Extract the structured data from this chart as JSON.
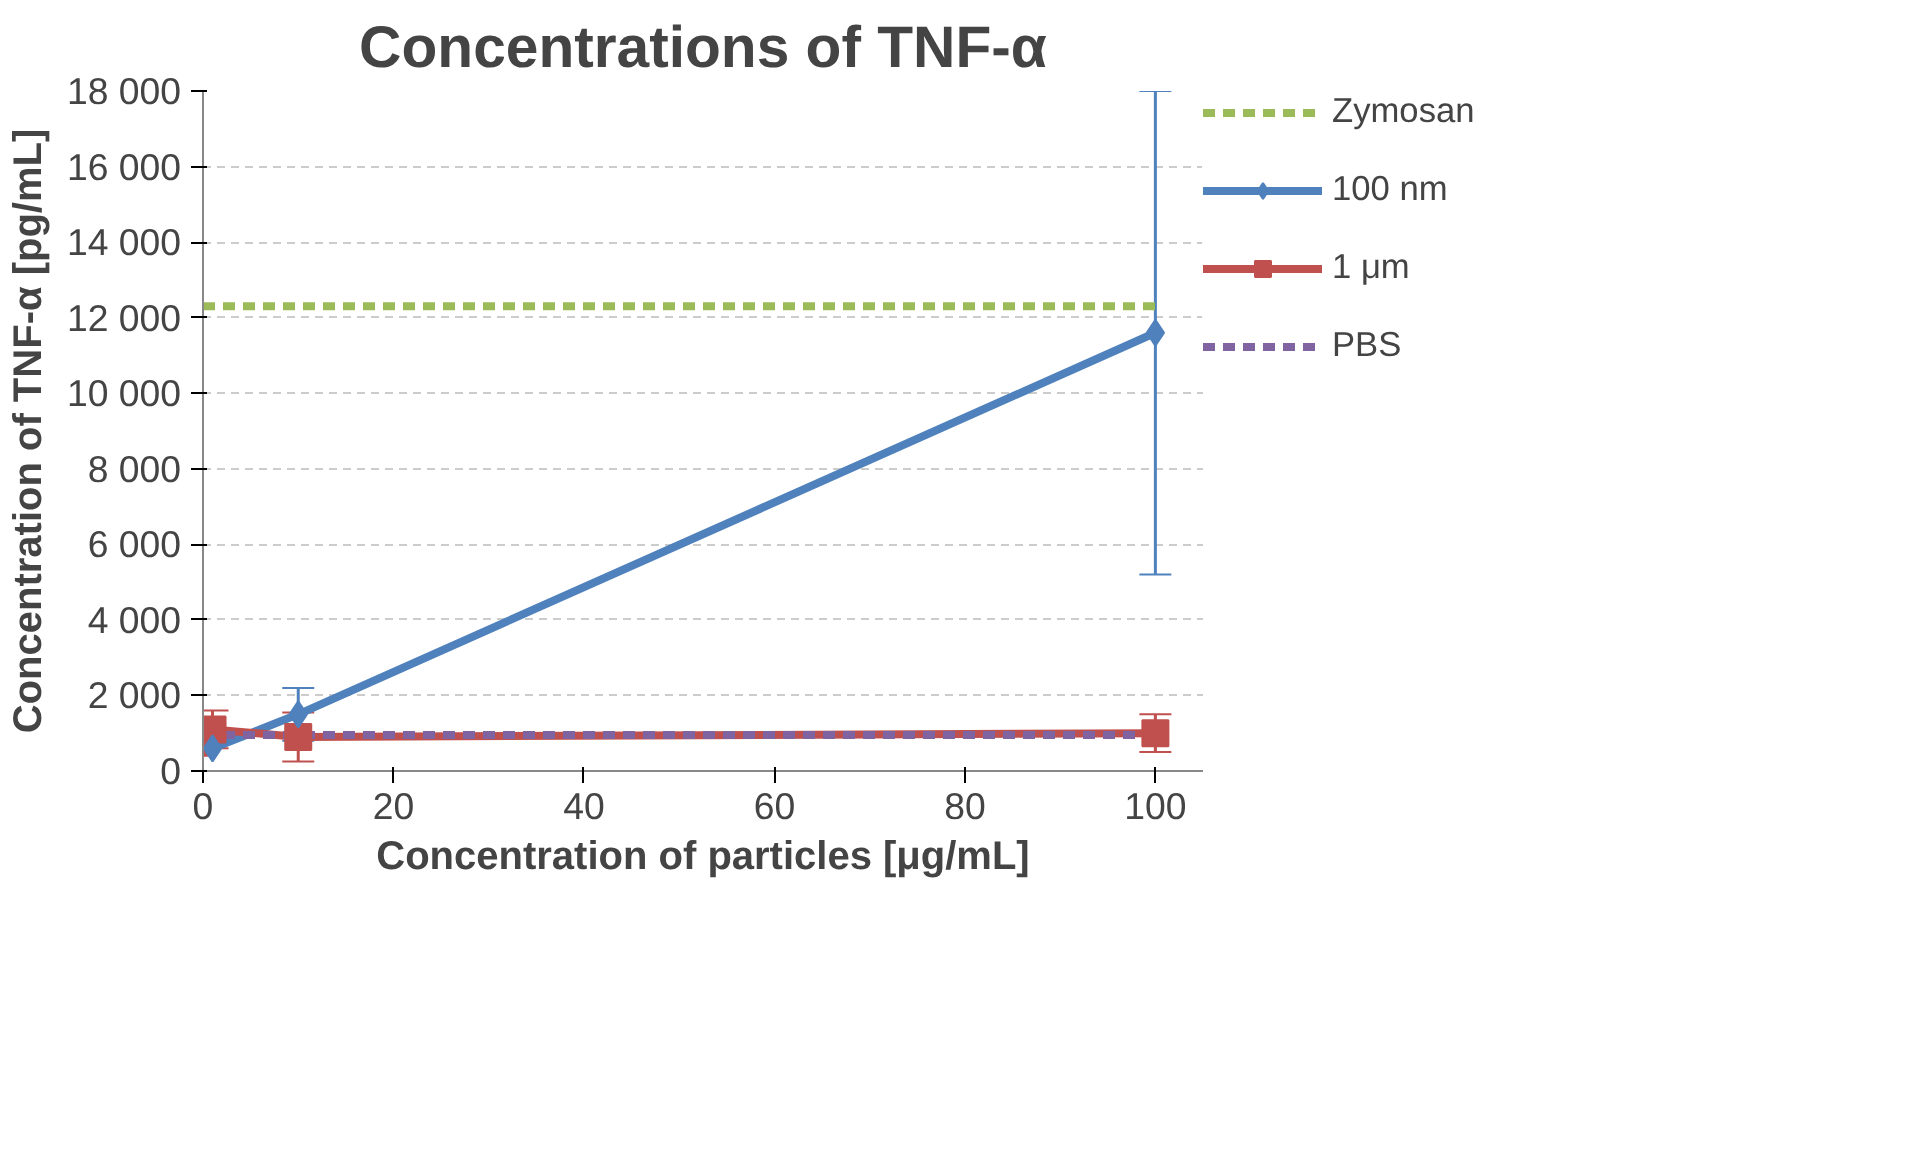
{
  "chart_data": {
    "type": "line",
    "title": "Concentrations of TNF-α",
    "xlabel": "Concentration of particles [μg/mL]",
    "ylabel": "Concentration of TNF-α [pg/mL]",
    "xlim": [
      0,
      105
    ],
    "xticks": [
      0,
      20,
      40,
      60,
      80,
      100
    ],
    "ylim": [
      0,
      18000
    ],
    "yticks": [
      0,
      {
        "value": 2000,
        "label": "2 000"
      },
      {
        "value": 4000,
        "label": "4 000"
      },
      {
        "value": 6000,
        "label": "6 000"
      },
      {
        "value": 8000,
        "label": "8 000"
      },
      {
        "value": 10000,
        "label": "10 000"
      },
      {
        "value": 12000,
        "label": "12 000"
      },
      {
        "value": 14000,
        "label": "14 000"
      },
      {
        "value": 16000,
        "label": "16 000"
      },
      {
        "value": 18000,
        "label": "18 000"
      }
    ],
    "grid": "y",
    "legend": "right",
    "series": [
      {
        "name": "Zymosan",
        "color": "#9bbb59",
        "x": [
          0,
          100
        ],
        "values": [
          12300,
          12300
        ],
        "line_style": "dashed",
        "marker": "none"
      },
      {
        "name": "100 nm",
        "color": "#4f81bd",
        "x": [
          1,
          10,
          100
        ],
        "values": [
          600,
          1500,
          11600
        ],
        "errors": [
          null,
          700,
          6400
        ],
        "line_style": "solid",
        "marker": "diamond"
      },
      {
        "name": "1 μm",
        "color": "#c0504d",
        "x": [
          0,
          1,
          10,
          100
        ],
        "values": [
          750,
          1100,
          900,
          1000
        ],
        "errors": [
          null,
          500,
          650,
          500
        ],
        "line_style": "solid",
        "marker": "square"
      },
      {
        "name": "PBS",
        "color": "#8064a2",
        "x": [
          0,
          100
        ],
        "values": [
          950,
          950
        ],
        "line_style": "dashed",
        "marker": "none"
      }
    ]
  }
}
